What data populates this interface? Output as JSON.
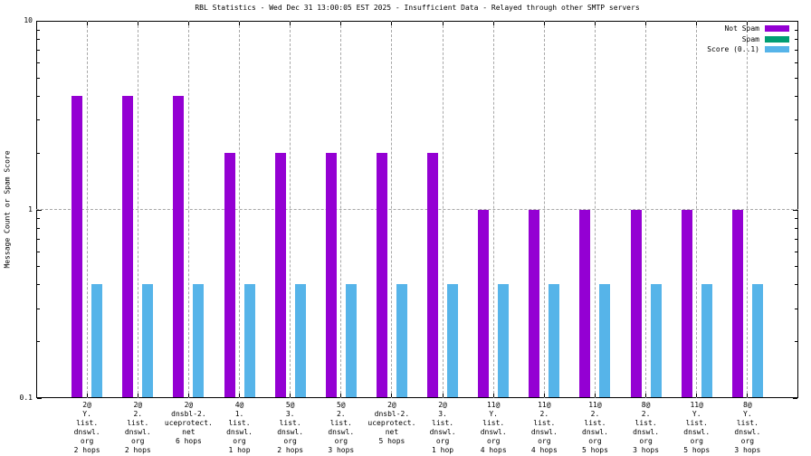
{
  "chart_data": {
    "type": "bar",
    "title": "RBL Statistics - Wed Dec 31 13:00:05 EST 2025 - Insufficient Data - Relayed through other SMTP servers",
    "ylabel": "Message Count or Spam Score",
    "xlabel": "",
    "y_scale": "log",
    "ylim": [
      0.1,
      10
    ],
    "y_ticks": [
      {
        "value": 10,
        "label": "10"
      },
      {
        "value": 1,
        "label": "1"
      },
      {
        "value": 0.1,
        "label": "0.1"
      }
    ],
    "grid": true,
    "legend_position": "top-right-inside",
    "grid_color": "#a8a8a8",
    "categories": [
      [
        "2@",
        "Y.",
        "list.",
        "dnswl.",
        "org",
        "2 hops"
      ],
      [
        "2@",
        "2.",
        "list.",
        "dnswl.",
        "org",
        "2 hops"
      ],
      [
        "2@",
        "dnsbl-2.",
        "uceprotect.",
        "net",
        "6 hops"
      ],
      [
        "4@",
        "1.",
        "list.",
        "dnswl.",
        "org",
        "1 hop"
      ],
      [
        "5@",
        "3.",
        "list.",
        "dnswl.",
        "org",
        "2 hops"
      ],
      [
        "5@",
        "2.",
        "list.",
        "dnswl.",
        "org",
        "3 hops"
      ],
      [
        "2@",
        "dnsbl-2.",
        "uceprotect.",
        "net",
        "5 hops"
      ],
      [
        "2@",
        "3.",
        "list.",
        "dnswl.",
        "org",
        "1 hop"
      ],
      [
        "11@",
        "Y.",
        "list.",
        "dnswl.",
        "org",
        "4 hops"
      ],
      [
        "11@",
        "2.",
        "list.",
        "dnswl.",
        "org",
        "4 hops"
      ],
      [
        "11@",
        "2.",
        "list.",
        "dnswl.",
        "org",
        "5 hops"
      ],
      [
        "8@",
        "2.",
        "list.",
        "dnswl.",
        "org",
        "3 hops"
      ],
      [
        "11@",
        "Y.",
        "list.",
        "dnswl.",
        "org",
        "5 hops"
      ],
      [
        "8@",
        "Y.",
        "list.",
        "dnswl.",
        "org",
        "3 hops"
      ]
    ],
    "series": [
      {
        "name": "Not Spam",
        "color": "#9400d3",
        "values": [
          4,
          4,
          4,
          2,
          2,
          2,
          2,
          2,
          1,
          1,
          1,
          1,
          1,
          1
        ]
      },
      {
        "name": "Spam",
        "color": "#009e73",
        "values": [
          0,
          0,
          0,
          0,
          0,
          0,
          0,
          0,
          0,
          0,
          0,
          0,
          0,
          0
        ]
      },
      {
        "name": "Score (0..1)",
        "color": "#56b4e9",
        "values": [
          0.4,
          0.4,
          0.4,
          0.4,
          0.4,
          0.4,
          0.4,
          0.4,
          0.4,
          0.4,
          0.4,
          0.4,
          0.4,
          0.4
        ]
      }
    ]
  }
}
